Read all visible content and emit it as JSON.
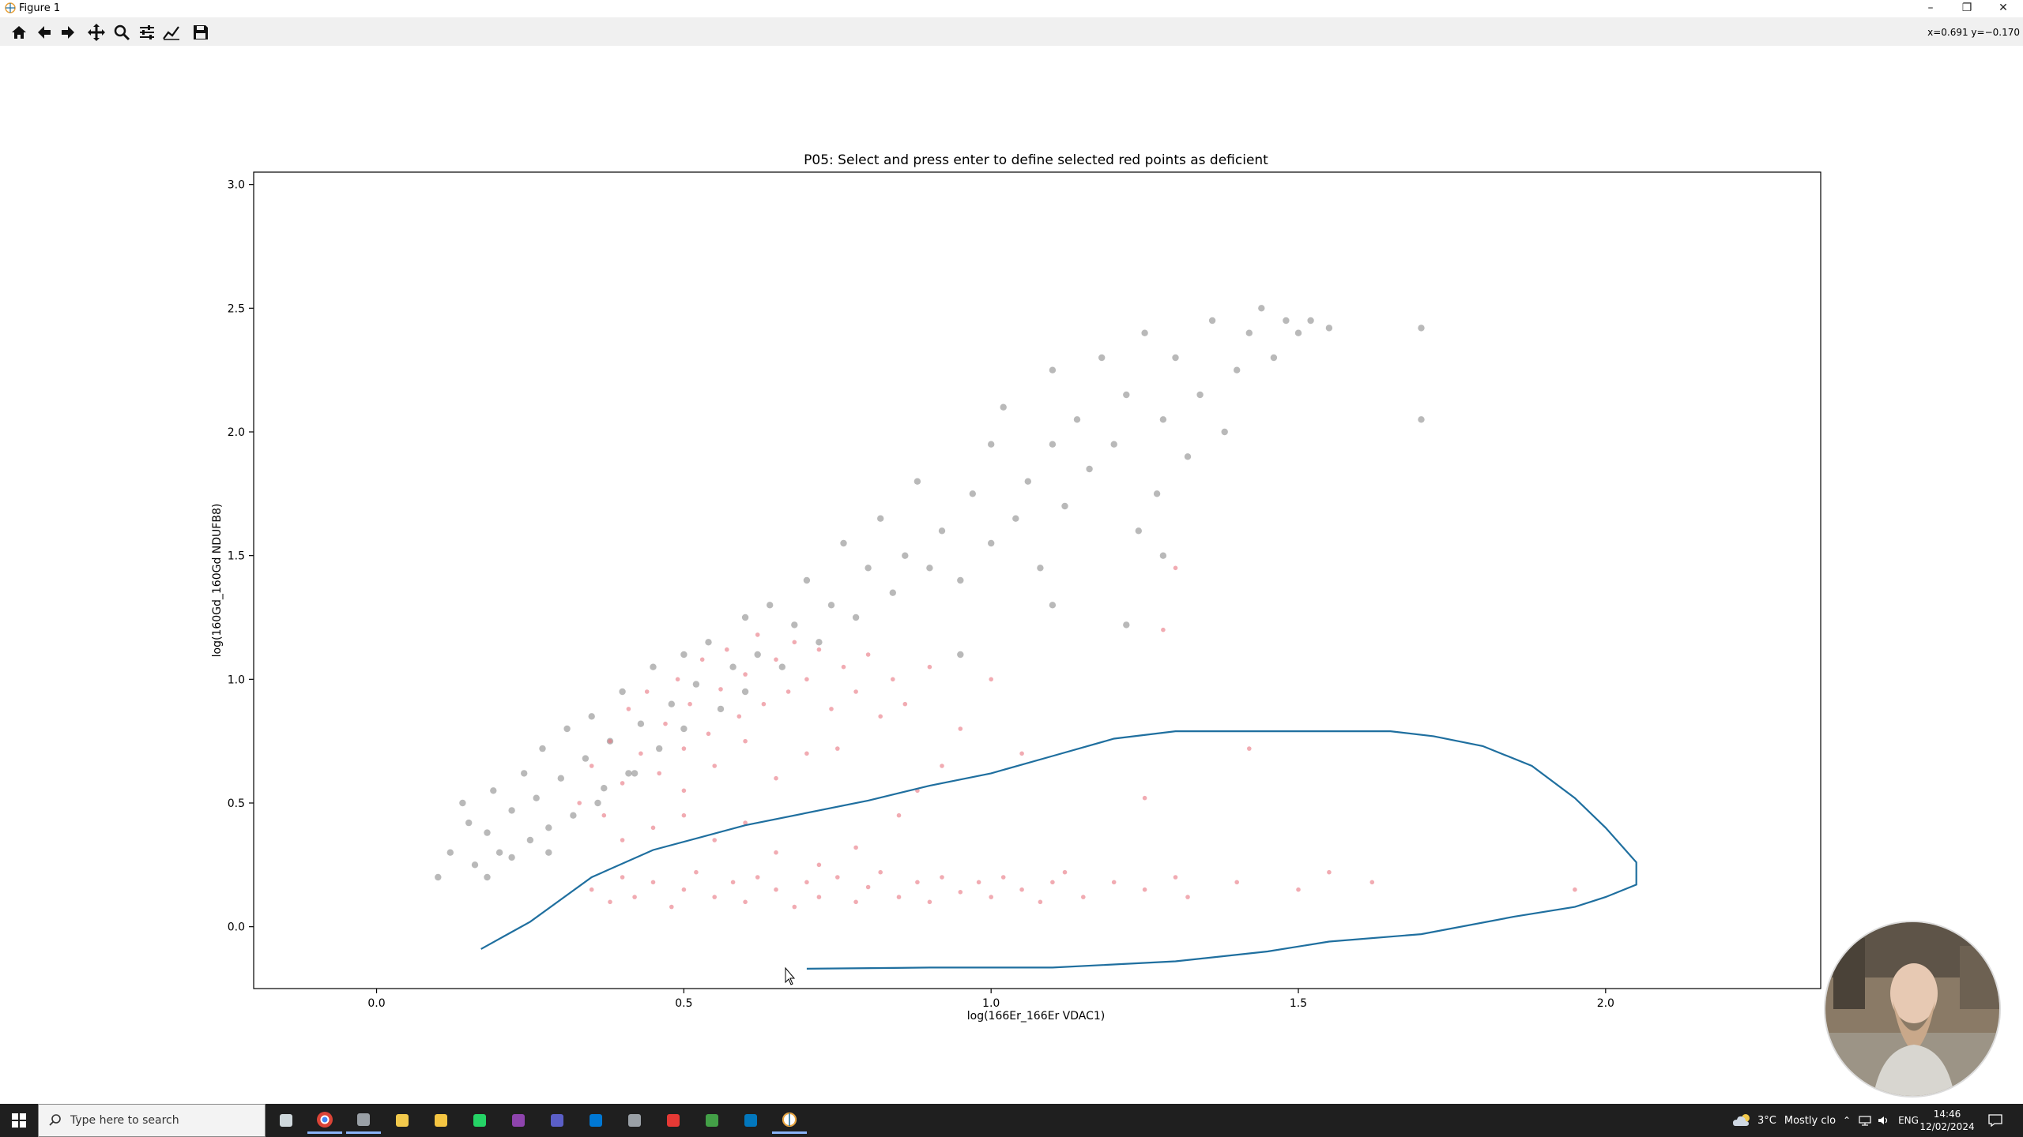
{
  "window": {
    "title": "Figure 1",
    "controls": {
      "minimize": "–",
      "restore": "❐",
      "close": "✕"
    }
  },
  "toolbar": {
    "buttons": [
      {
        "name": "home-icon",
        "tooltip": "Reset original view"
      },
      {
        "name": "back-arrow-icon",
        "tooltip": "Back"
      },
      {
        "name": "forward-arrow-icon",
        "tooltip": "Forward"
      },
      {
        "name": "pan-icon",
        "tooltip": "Pan"
      },
      {
        "name": "zoom-icon",
        "tooltip": "Zoom"
      },
      {
        "name": "subplots-config-icon",
        "tooltip": "Configure subplots"
      },
      {
        "name": "edit-axis-icon",
        "tooltip": "Edit axis"
      },
      {
        "name": "save-icon",
        "tooltip": "Save"
      }
    ],
    "coordinates": "x=0.691 y=−0.170"
  },
  "chart_data": {
    "type": "scatter",
    "title": "P05: Select and press enter to define selected red points as deficient",
    "xlabel": "log(166Er_166Er VDAC1)",
    "ylabel": "log(160Gd_160Gd NDUFB8)",
    "xlim": [
      -0.2,
      2.35
    ],
    "ylim": [
      -0.25,
      3.05
    ],
    "xticks": [
      "0.0",
      "0.5",
      "1.0",
      "1.5",
      "2.0"
    ],
    "yticks": [
      "0.0",
      "0.5",
      "1.0",
      "1.5",
      "2.0",
      "2.5",
      "3.0"
    ],
    "xtick_values": [
      0.0,
      0.5,
      1.0,
      1.5,
      2.0
    ],
    "ytick_values": [
      0.0,
      0.5,
      1.0,
      1.5,
      2.0,
      2.5,
      3.0
    ],
    "grid": false,
    "series": [
      {
        "color": "#808080",
        "points": [
          [
            0.1,
            0.2
          ],
          [
            0.12,
            0.3
          ],
          [
            0.14,
            0.5
          ],
          [
            0.15,
            0.42
          ],
          [
            0.16,
            0.25
          ],
          [
            0.18,
            0.38
          ],
          [
            0.19,
            0.55
          ],
          [
            0.2,
            0.3
          ],
          [
            0.22,
            0.47
          ],
          [
            0.24,
            0.62
          ],
          [
            0.25,
            0.35
          ],
          [
            0.26,
            0.52
          ],
          [
            0.27,
            0.72
          ],
          [
            0.28,
            0.4
          ],
          [
            0.3,
            0.6
          ],
          [
            0.31,
            0.8
          ],
          [
            0.32,
            0.45
          ],
          [
            0.34,
            0.68
          ],
          [
            0.35,
            0.85
          ],
          [
            0.37,
            0.56
          ],
          [
            0.38,
            0.75
          ],
          [
            0.4,
            0.95
          ],
          [
            0.41,
            0.62
          ],
          [
            0.43,
            0.82
          ],
          [
            0.45,
            1.05
          ],
          [
            0.46,
            0.72
          ],
          [
            0.48,
            0.9
          ],
          [
            0.5,
            1.1
          ],
          [
            0.5,
            0.8
          ],
          [
            0.52,
            0.98
          ],
          [
            0.54,
            1.15
          ],
          [
            0.56,
            0.88
          ],
          [
            0.58,
            1.05
          ],
          [
            0.6,
            1.25
          ],
          [
            0.6,
            0.95
          ],
          [
            0.62,
            1.1
          ],
          [
            0.64,
            1.3
          ],
          [
            0.66,
            1.05
          ],
          [
            0.68,
            1.22
          ],
          [
            0.7,
            1.4
          ],
          [
            0.72,
            1.15
          ],
          [
            0.74,
            1.3
          ],
          [
            0.76,
            1.55
          ],
          [
            0.78,
            1.25
          ],
          [
            0.8,
            1.45
          ],
          [
            0.82,
            1.65
          ],
          [
            0.84,
            1.35
          ],
          [
            0.86,
            1.5
          ],
          [
            0.88,
            1.8
          ],
          [
            0.9,
            1.45
          ],
          [
            0.92,
            1.6
          ],
          [
            0.95,
            1.4
          ],
          [
            0.97,
            1.75
          ],
          [
            1.0,
            1.55
          ],
          [
            1.0,
            1.95
          ],
          [
            1.02,
            2.1
          ],
          [
            1.04,
            1.65
          ],
          [
            1.06,
            1.8
          ],
          [
            1.08,
            1.45
          ],
          [
            1.1,
            1.95
          ],
          [
            1.1,
            2.25
          ],
          [
            1.12,
            1.7
          ],
          [
            1.14,
            2.05
          ],
          [
            1.16,
            1.85
          ],
          [
            1.18,
            2.3
          ],
          [
            1.2,
            1.95
          ],
          [
            1.22,
            2.15
          ],
          [
            1.24,
            1.6
          ],
          [
            1.25,
            2.4
          ],
          [
            1.27,
            1.75
          ],
          [
            1.28,
            2.05
          ],
          [
            1.3,
            2.3
          ],
          [
            1.32,
            1.9
          ],
          [
            1.34,
            2.15
          ],
          [
            1.36,
            2.45
          ],
          [
            1.38,
            2.0
          ],
          [
            1.4,
            2.25
          ],
          [
            1.42,
            2.4
          ],
          [
            1.44,
            2.5
          ],
          [
            1.46,
            2.3
          ],
          [
            1.48,
            2.45
          ],
          [
            1.5,
            2.4
          ],
          [
            1.52,
            2.45
          ],
          [
            1.55,
            2.42
          ],
          [
            1.7,
            2.05
          ],
          [
            1.7,
            2.42
          ],
          [
            1.22,
            1.22
          ],
          [
            1.28,
            1.5
          ],
          [
            1.1,
            1.3
          ],
          [
            0.95,
            1.1
          ],
          [
            0.42,
            0.62
          ],
          [
            0.36,
            0.5
          ],
          [
            0.28,
            0.3
          ],
          [
            0.22,
            0.28
          ],
          [
            0.18,
            0.2
          ]
        ]
      },
      {
        "color": "#e8737f",
        "points": [
          [
            0.33,
            0.5
          ],
          [
            0.35,
            0.65
          ],
          [
            0.37,
            0.45
          ],
          [
            0.38,
            0.75
          ],
          [
            0.4,
            0.58
          ],
          [
            0.41,
            0.88
          ],
          [
            0.43,
            0.7
          ],
          [
            0.44,
            0.95
          ],
          [
            0.46,
            0.62
          ],
          [
            0.47,
            0.82
          ],
          [
            0.49,
            1.0
          ],
          [
            0.5,
            0.72
          ],
          [
            0.51,
            0.9
          ],
          [
            0.53,
            1.08
          ],
          [
            0.54,
            0.78
          ],
          [
            0.56,
            0.96
          ],
          [
            0.57,
            1.12
          ],
          [
            0.59,
            0.85
          ],
          [
            0.6,
            1.02
          ],
          [
            0.62,
            1.18
          ],
          [
            0.63,
            0.9
          ],
          [
            0.65,
            1.08
          ],
          [
            0.67,
            0.95
          ],
          [
            0.68,
            1.15
          ],
          [
            0.7,
            1.0
          ],
          [
            0.72,
            1.12
          ],
          [
            0.74,
            0.88
          ],
          [
            0.76,
            1.05
          ],
          [
            0.78,
            0.95
          ],
          [
            0.8,
            1.1
          ],
          [
            0.82,
            0.85
          ],
          [
            0.84,
            1.0
          ],
          [
            0.86,
            0.9
          ],
          [
            0.9,
            1.05
          ],
          [
            0.95,
            0.8
          ],
          [
            1.0,
            1.0
          ],
          [
            1.05,
            0.7
          ],
          [
            0.5,
            0.55
          ],
          [
            0.55,
            0.65
          ],
          [
            0.6,
            0.75
          ],
          [
            0.65,
            0.6
          ],
          [
            0.7,
            0.7
          ],
          [
            0.75,
            0.72
          ],
          [
            0.4,
            0.35
          ],
          [
            0.45,
            0.4
          ],
          [
            0.5,
            0.45
          ],
          [
            0.55,
            0.35
          ],
          [
            0.6,
            0.42
          ],
          [
            0.35,
            0.15
          ],
          [
            0.38,
            0.1
          ],
          [
            0.4,
            0.2
          ],
          [
            0.42,
            0.12
          ],
          [
            0.45,
            0.18
          ],
          [
            0.48,
            0.08
          ],
          [
            0.5,
            0.15
          ],
          [
            0.52,
            0.22
          ],
          [
            0.55,
            0.12
          ],
          [
            0.58,
            0.18
          ],
          [
            0.6,
            0.1
          ],
          [
            0.62,
            0.2
          ],
          [
            0.65,
            0.15
          ],
          [
            0.68,
            0.08
          ],
          [
            0.7,
            0.18
          ],
          [
            0.72,
            0.12
          ],
          [
            0.75,
            0.2
          ],
          [
            0.78,
            0.1
          ],
          [
            0.8,
            0.16
          ],
          [
            0.82,
            0.22
          ],
          [
            0.85,
            0.12
          ],
          [
            0.88,
            0.18
          ],
          [
            0.9,
            0.1
          ],
          [
            0.92,
            0.2
          ],
          [
            0.95,
            0.14
          ],
          [
            0.98,
            0.18
          ],
          [
            1.0,
            0.12
          ],
          [
            1.02,
            0.2
          ],
          [
            1.05,
            0.15
          ],
          [
            1.08,
            0.1
          ],
          [
            1.1,
            0.18
          ],
          [
            1.12,
            0.22
          ],
          [
            1.15,
            0.12
          ],
          [
            1.2,
            0.18
          ],
          [
            1.25,
            0.15
          ],
          [
            1.3,
            0.2
          ],
          [
            1.32,
            0.12
          ],
          [
            1.4,
            0.18
          ],
          [
            1.5,
            0.15
          ],
          [
            1.55,
            0.22
          ],
          [
            1.62,
            0.18
          ],
          [
            1.95,
            0.15
          ],
          [
            1.42,
            0.72
          ],
          [
            1.25,
            0.52
          ],
          [
            1.3,
            1.45
          ],
          [
            1.28,
            1.2
          ],
          [
            0.88,
            0.55
          ],
          [
            0.92,
            0.65
          ],
          [
            0.85,
            0.45
          ],
          [
            0.78,
            0.32
          ],
          [
            0.65,
            0.3
          ],
          [
            0.72,
            0.25
          ]
        ]
      }
    ],
    "selection_path": {
      "color": "#1f6f9f",
      "points": [
        [
          0.17,
          -0.09
        ],
        [
          0.25,
          0.02
        ],
        [
          0.35,
          0.2
        ],
        [
          0.45,
          0.31
        ],
        [
          0.6,
          0.41
        ],
        [
          0.8,
          0.51
        ],
        [
          0.9,
          0.57
        ],
        [
          1.0,
          0.62
        ],
        [
          1.1,
          0.69
        ],
        [
          1.2,
          0.76
        ],
        [
          1.3,
          0.79
        ],
        [
          1.4,
          0.79
        ],
        [
          1.5,
          0.79
        ],
        [
          1.6,
          0.79
        ],
        [
          1.65,
          0.79
        ],
        [
          1.72,
          0.77
        ],
        [
          1.8,
          0.73
        ],
        [
          1.88,
          0.65
        ],
        [
          1.95,
          0.52
        ],
        [
          2.0,
          0.4
        ],
        [
          2.05,
          0.26
        ],
        [
          2.05,
          0.17
        ],
        [
          2.0,
          0.12
        ],
        [
          1.95,
          0.08
        ],
        [
          1.85,
          0.04
        ],
        [
          1.7,
          -0.03
        ],
        [
          1.55,
          -0.06
        ],
        [
          1.45,
          -0.1
        ],
        [
          1.3,
          -0.14
        ],
        [
          1.1,
          -0.165
        ],
        [
          0.9,
          -0.165
        ],
        [
          0.7,
          -0.17
        ]
      ]
    }
  },
  "taskbar": {
    "search_placeholder": "Type here to search",
    "apps": [
      "task-view-icon",
      "chrome-icon",
      "app-icon-3",
      "app-icon-4",
      "file-explorer-icon",
      "whatsapp-icon",
      "app-icon-7",
      "teams-icon",
      "outlook-icon",
      "app-icon-10",
      "acrobat-icon",
      "app-icon-12",
      "powershell-icon",
      "matplotlib-figure-icon"
    ],
    "weather_temp": "3°C",
    "weather_text": "Mostly clo",
    "language": "ENG",
    "time": "14:46",
    "date": "12/02/2024"
  }
}
